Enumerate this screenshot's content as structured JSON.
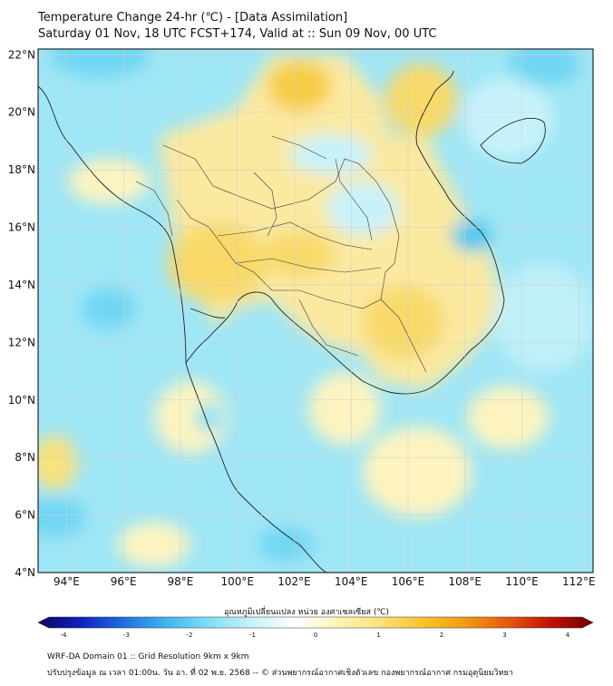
{
  "header": {
    "title": "Temperature Change 24-hr (℃) - [Data Assimilation]",
    "subtitle": "Saturday 01 Nov, 18 UTC FCST+174, Valid at :: Sun 09 Nov, 00 UTC"
  },
  "map": {
    "lon_ticks": [
      "94°E",
      "96°E",
      "98°E",
      "100°E",
      "102°E",
      "104°E",
      "106°E",
      "108°E",
      "110°E",
      "112°E"
    ],
    "lat_ticks": [
      "22°N",
      "20°N",
      "18°N",
      "16°N",
      "14°N",
      "12°N",
      "10°N",
      "8°N",
      "6°N",
      "4°N"
    ],
    "lon_range": [
      93,
      112.5
    ],
    "lat_range": [
      4,
      22.2
    ],
    "grid": true
  },
  "colorbar": {
    "label": "อุณหภูมิเปลี่ยนแปลง หน่วย องศาเซลเซียส (℃)",
    "ticks": [
      "-4",
      "-3",
      "-2",
      "-1",
      "0",
      "1",
      "2",
      "3",
      "4"
    ],
    "range": [
      -4,
      4
    ],
    "colors": [
      "#08065e",
      "#1020c0",
      "#1e6fe0",
      "#3fb6f0",
      "#7ee0f6",
      "#c8f2fa",
      "#ffffff",
      "#fdf6b8",
      "#fbe27a",
      "#f7c52a",
      "#f39a16",
      "#e55a0c",
      "#c01208",
      "#6e0000"
    ]
  },
  "footer": {
    "line1": "WRF-DA Domain 01 :: Grid Resolution 9km x 9km",
    "line2": "ปรับปรุงข้อมูล ณ เวลา 01:00น. วัน อา. ที่ 02 พ.ย. 2568 -- © ส่วนพยากรณ์อากาศเชิงตัวเลข กองพยากรณ์อากาศ กรมอุตุนิยมวิทยา"
  }
}
